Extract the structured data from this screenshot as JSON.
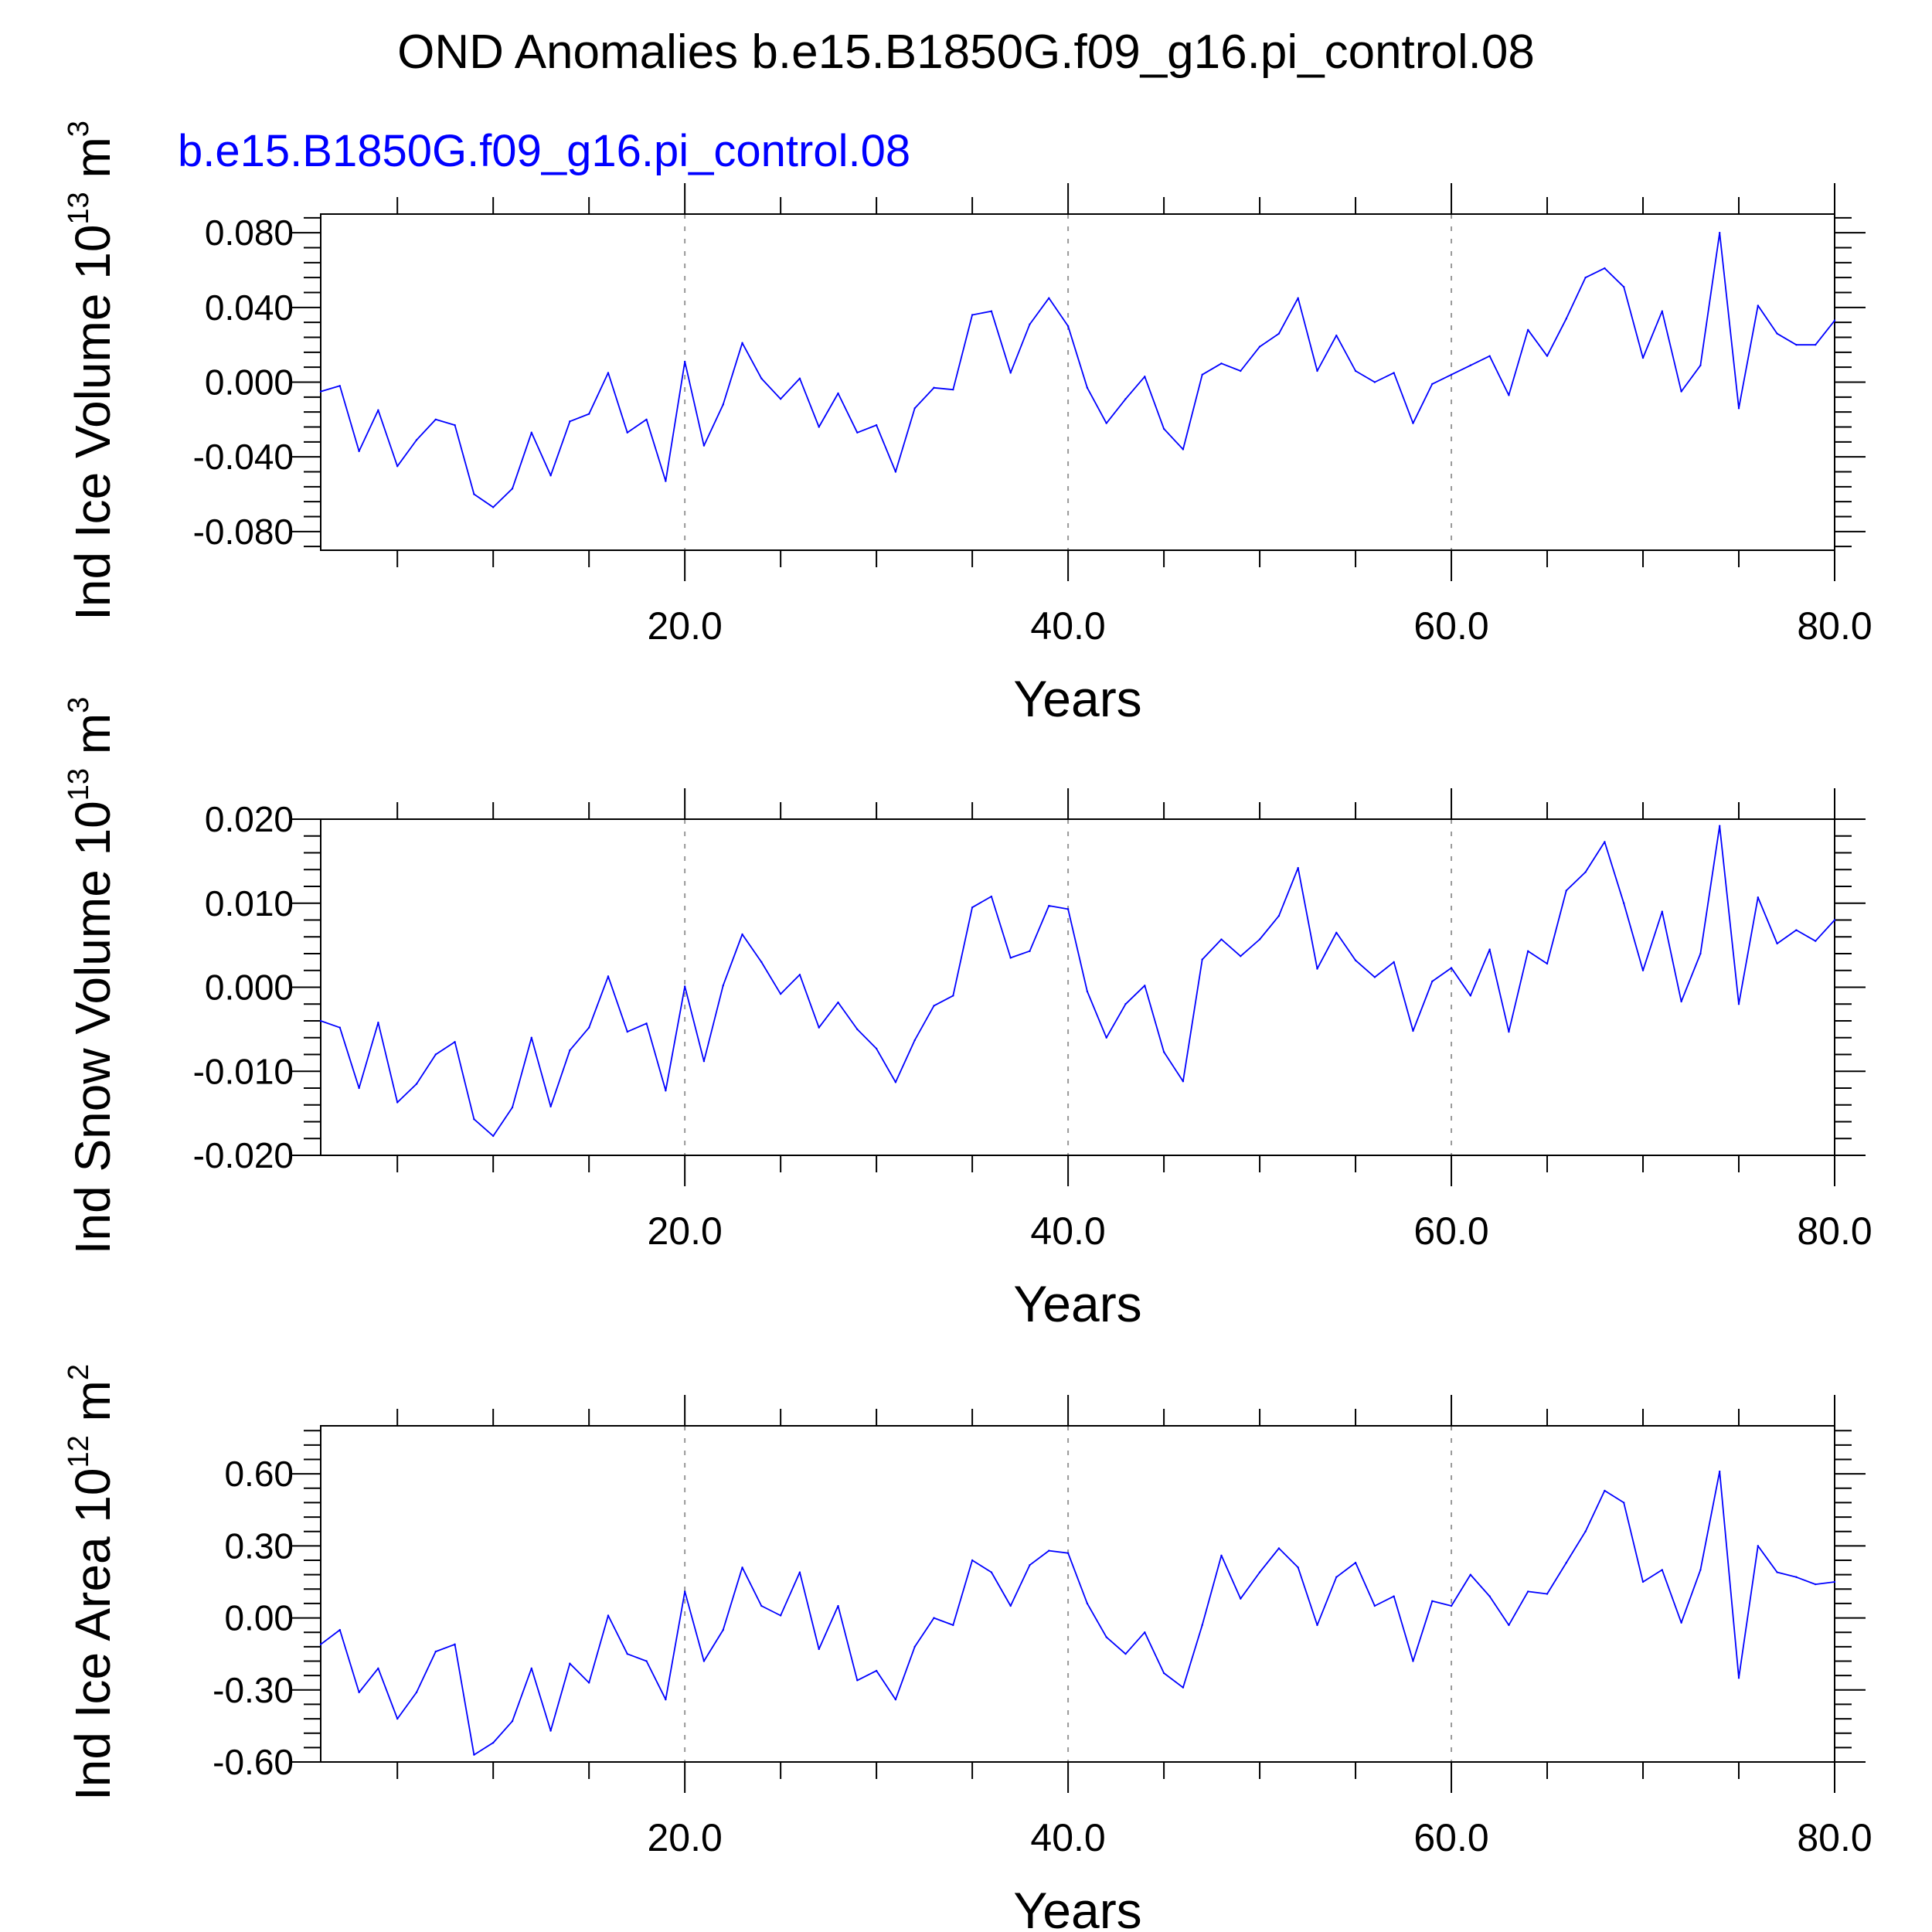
{
  "figure": {
    "title": "OND Anomalies b.e15.B1850G.f09_g16.pi_control.08",
    "subtitle": "b.e15.B1850G.f09_g16.pi_control.08",
    "subtitle_color": "#0000ff",
    "series_color": "#0000ff"
  },
  "chart_data": [
    {
      "type": "line",
      "ylabel": "Ind Ice Volume 10",
      "ylabel_unit_exp": "13",
      "ylabel_unit": " m",
      "ylabel_unit_pow": "3",
      "xlabel": "Years",
      "xlim": [
        1,
        80
      ],
      "ylim": [
        -0.09,
        0.09
      ],
      "x_ticks": [
        20,
        40,
        60,
        80
      ],
      "x_tick_labels": [
        "20.0",
        "40.0",
        "60.0",
        "80.0"
      ],
      "y_ticks": [
        -0.08,
        -0.04,
        0.0,
        0.04,
        0.08
      ],
      "y_tick_labels": [
        "-0.080",
        "-0.040",
        "0.000",
        "0.040",
        "0.080"
      ],
      "x": [
        1,
        2,
        3,
        4,
        5,
        6,
        7,
        8,
        9,
        10,
        11,
        12,
        13,
        14,
        15,
        16,
        17,
        18,
        19,
        20,
        21,
        22,
        23,
        24,
        25,
        26,
        27,
        28,
        29,
        30,
        31,
        32,
        33,
        34,
        35,
        36,
        37,
        38,
        39,
        40,
        41,
        42,
        43,
        44,
        45,
        46,
        47,
        48,
        49,
        50,
        51,
        52,
        53,
        54,
        55,
        56,
        57,
        58,
        59,
        60,
        61,
        62,
        63,
        64,
        65,
        66,
        67,
        68,
        69,
        70,
        71,
        72,
        73,
        74,
        75,
        76,
        77,
        78,
        79,
        80
      ],
      "values": [
        -0.005,
        -0.002,
        -0.037,
        -0.015,
        -0.045,
        -0.031,
        -0.02,
        -0.023,
        -0.06,
        -0.067,
        -0.057,
        -0.027,
        -0.05,
        -0.021,
        -0.017,
        0.005,
        -0.027,
        -0.02,
        -0.053,
        0.011,
        -0.034,
        -0.012,
        0.021,
        0.002,
        -0.009,
        0.002,
        -0.024,
        -0.006,
        -0.027,
        -0.023,
        -0.048,
        -0.014,
        -0.003,
        -0.004,
        0.036,
        0.038,
        0.005,
        0.031,
        0.045,
        0.03,
        -0.003,
        -0.022,
        -0.009,
        0.003,
        -0.025,
        -0.036,
        0.004,
        0.01,
        0.006,
        0.019,
        0.026,
        0.045,
        0.006,
        0.025,
        0.006,
        0.0,
        0.005,
        -0.022,
        -0.001,
        0.004,
        0.009,
        0.014,
        -0.007,
        0.028,
        0.014,
        0.034,
        0.056,
        0.061,
        0.051,
        0.013,
        0.038,
        -0.005,
        0.009,
        0.08,
        -0.014,
        0.041,
        0.026,
        0.02,
        0.02,
        0.033
      ]
    },
    {
      "type": "line",
      "ylabel": "Ind Snow Volume 10",
      "ylabel_unit_exp": "13",
      "ylabel_unit": " m",
      "ylabel_unit_pow": "3",
      "xlabel": "Years",
      "xlim": [
        1,
        80
      ],
      "ylim": [
        -0.02,
        0.02
      ],
      "x_ticks": [
        20,
        40,
        60,
        80
      ],
      "x_tick_labels": [
        "20.0",
        "40.0",
        "60.0",
        "80.0"
      ],
      "y_ticks": [
        -0.02,
        -0.01,
        0.0,
        0.01,
        0.02
      ],
      "y_tick_labels": [
        "-0.020",
        "-0.010",
        "0.000",
        "0.010",
        "0.020"
      ],
      "x": [
        1,
        2,
        3,
        4,
        5,
        6,
        7,
        8,
        9,
        10,
        11,
        12,
        13,
        14,
        15,
        16,
        17,
        18,
        19,
        20,
        21,
        22,
        23,
        24,
        25,
        26,
        27,
        28,
        29,
        30,
        31,
        32,
        33,
        34,
        35,
        36,
        37,
        38,
        39,
        40,
        41,
        42,
        43,
        44,
        45,
        46,
        47,
        48,
        49,
        50,
        51,
        52,
        53,
        54,
        55,
        56,
        57,
        58,
        59,
        60,
        61,
        62,
        63,
        64,
        65,
        66,
        67,
        68,
        69,
        70,
        71,
        72,
        73,
        74,
        75,
        76,
        77,
        78,
        79,
        80
      ],
      "values": [
        -0.004,
        -0.0048,
        -0.012,
        -0.0042,
        -0.0137,
        -0.0115,
        -0.008,
        -0.0065,
        -0.0157,
        -0.0177,
        -0.0143,
        -0.006,
        -0.0142,
        -0.0075,
        -0.0048,
        0.0013,
        -0.0053,
        -0.0043,
        -0.0123,
        0.0001,
        -0.0088,
        0.0002,
        0.0063,
        0.003,
        -0.0008,
        0.0015,
        -0.0048,
        -0.0018,
        -0.005,
        -0.0073,
        -0.0113,
        -0.0063,
        -0.0022,
        -0.001,
        0.0095,
        0.0108,
        0.0035,
        0.0043,
        0.0097,
        0.0093,
        -0.0005,
        -0.006,
        -0.002,
        0.0002,
        -0.0077,
        -0.0112,
        0.0033,
        0.0057,
        0.0037,
        0.0057,
        0.0085,
        0.0142,
        0.0022,
        0.0065,
        0.0032,
        0.0012,
        0.003,
        -0.0052,
        0.0007,
        0.0023,
        -0.001,
        0.0045,
        -0.0053,
        0.0043,
        0.0028,
        0.0115,
        0.0137,
        0.0173,
        0.01,
        0.002,
        0.009,
        -0.0017,
        0.004,
        0.0192,
        -0.002,
        0.0107,
        0.0052,
        0.0068,
        0.0055,
        0.008
      ]
    },
    {
      "type": "line",
      "ylabel": "Ind Ice Area 10",
      "ylabel_unit_exp": "12",
      "ylabel_unit": " m",
      "ylabel_unit_pow": "2",
      "xlabel": "Years",
      "xlim": [
        1,
        80
      ],
      "ylim": [
        -0.6,
        0.8
      ],
      "x_ticks": [
        20,
        40,
        60,
        80
      ],
      "x_tick_labels": [
        "20.0",
        "40.0",
        "60.0",
        "80.0"
      ],
      "y_ticks": [
        -0.6,
        -0.3,
        0.0,
        0.3,
        0.6
      ],
      "y_tick_labels": [
        "-0.60",
        "-0.30",
        "0.00",
        "0.30",
        "0.60"
      ],
      "x": [
        1,
        2,
        3,
        4,
        5,
        6,
        7,
        8,
        9,
        10,
        11,
        12,
        13,
        14,
        15,
        16,
        17,
        18,
        19,
        20,
        21,
        22,
        23,
        24,
        25,
        26,
        27,
        28,
        29,
        30,
        31,
        32,
        33,
        34,
        35,
        36,
        37,
        38,
        39,
        40,
        41,
        42,
        43,
        44,
        45,
        46,
        47,
        48,
        49,
        50,
        51,
        52,
        53,
        54,
        55,
        56,
        57,
        58,
        59,
        60,
        61,
        62,
        63,
        64,
        65,
        66,
        67,
        68,
        69,
        70,
        71,
        72,
        73,
        74,
        75,
        76,
        77,
        78,
        79,
        80
      ],
      "values": [
        -0.11,
        -0.05,
        -0.31,
        -0.21,
        -0.42,
        -0.31,
        -0.14,
        -0.11,
        -0.57,
        -0.52,
        -0.43,
        -0.21,
        -0.47,
        -0.19,
        -0.27,
        0.01,
        -0.15,
        -0.18,
        -0.34,
        0.11,
        -0.18,
        -0.05,
        0.21,
        0.05,
        0.01,
        0.19,
        -0.13,
        0.05,
        -0.26,
        -0.22,
        -0.34,
        -0.12,
        0.0,
        -0.03,
        0.24,
        0.19,
        0.05,
        0.22,
        0.28,
        0.27,
        0.06,
        -0.08,
        -0.15,
        -0.06,
        -0.23,
        -0.29,
        -0.03,
        0.26,
        0.08,
        0.19,
        0.29,
        0.21,
        -0.03,
        0.17,
        0.23,
        0.05,
        0.09,
        -0.18,
        0.07,
        0.05,
        0.18,
        0.09,
        -0.03,
        0.11,
        0.1,
        0.23,
        0.36,
        0.53,
        0.48,
        0.15,
        0.2,
        -0.02,
        0.2,
        0.61,
        -0.25,
        0.3,
        0.19,
        0.17,
        0.14,
        0.15
      ]
    }
  ]
}
